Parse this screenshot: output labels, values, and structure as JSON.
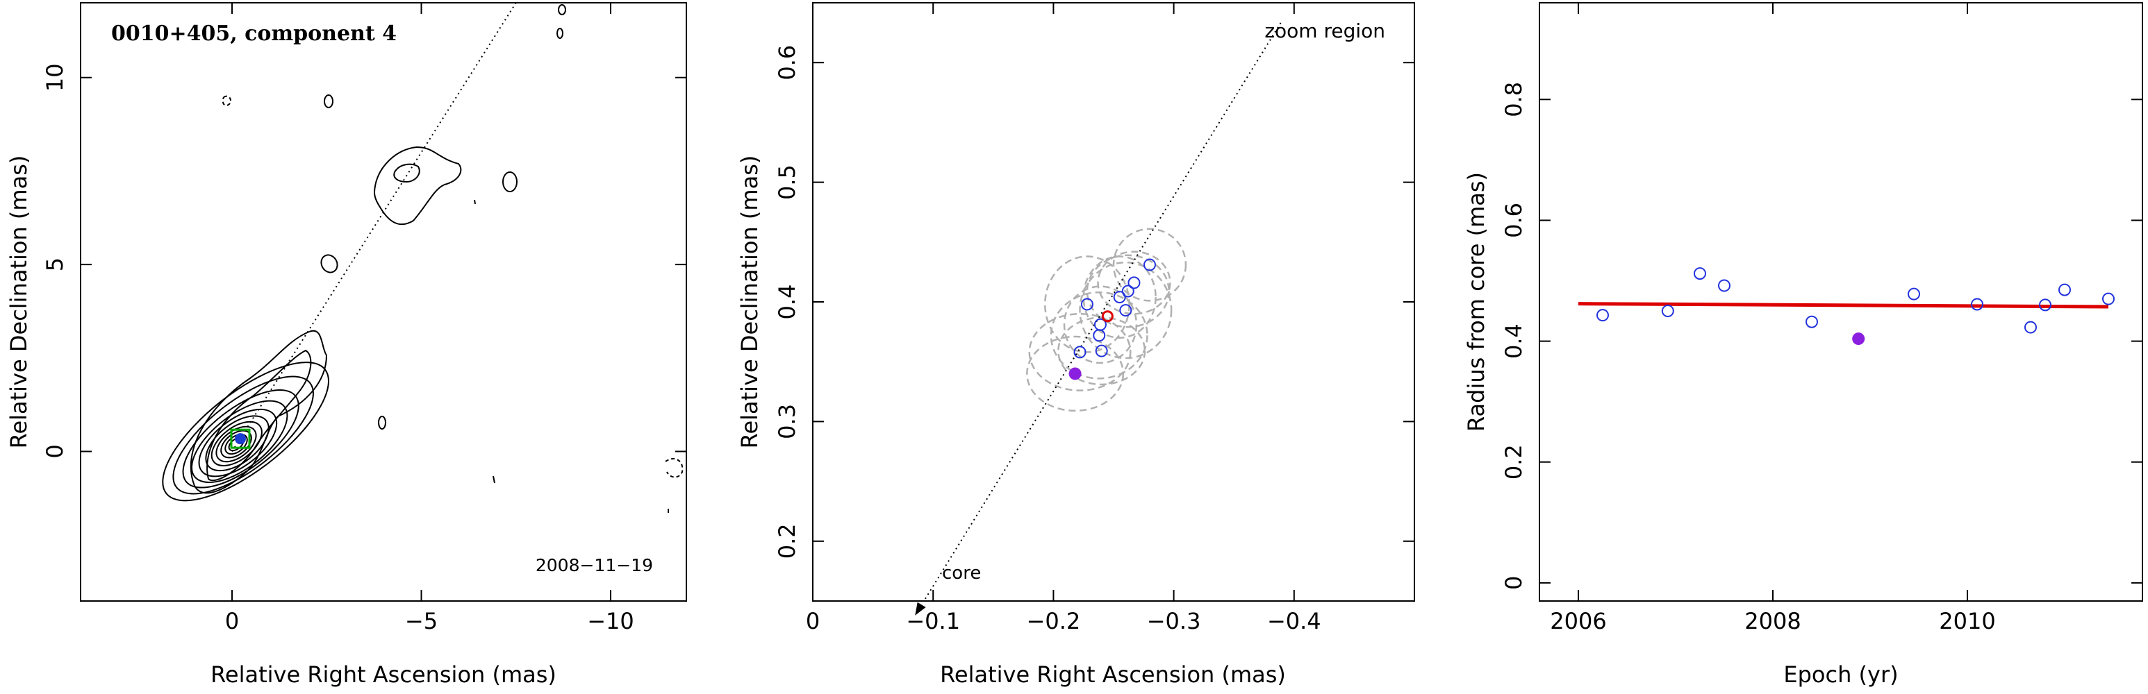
{
  "chart_data": [
    {
      "type": "contour",
      "title": "0010+405, component 4",
      "xlabel": "Relative Right Ascension (mas)",
      "ylabel": "Relative Declination (mas)",
      "xlim": [
        4,
        -12
      ],
      "ylim": [
        -4,
        12
      ],
      "xticks": [
        0,
        -5,
        -10
      ],
      "xtick_labels": [
        "0",
        "−5",
        "−10"
      ],
      "yticks": [
        0,
        5,
        10
      ],
      "ytick_labels": [
        "0",
        "5",
        "10"
      ],
      "date_label": "2008−11−19",
      "jet_axis": {
        "from": [
          0,
          0
        ],
        "to": [
          -7.5,
          12
        ]
      },
      "component": {
        "ra": -0.22,
        "dec": 0.34
      },
      "colors": {
        "contour": "#000000",
        "component": "#1a3fd0",
        "box": "#00aa00"
      }
    },
    {
      "type": "scatter",
      "xlabel": "Relative Right Ascension (mas)",
      "ylabel": "Relative Declination (mas)",
      "xlim": [
        0,
        -0.5
      ],
      "ylim": [
        0.15,
        0.65
      ],
      "xticks": [
        0,
        -0.1,
        -0.2,
        -0.3,
        -0.4
      ],
      "xtick_labels": [
        "0",
        "−0.1",
        "−0.2",
        "−0.3",
        "−0.4"
      ],
      "yticks": [
        0.2,
        0.3,
        0.4,
        0.5,
        0.6
      ],
      "ytick_labels": [
        "0.2",
        "0.3",
        "0.4",
        "0.5",
        "0.6"
      ],
      "annotations": {
        "zoom": "zoom region",
        "core": "core"
      },
      "points": [
        {
          "x": -0.222,
          "y": 0.358
        },
        {
          "x": -0.228,
          "y": 0.398
        },
        {
          "x": -0.238,
          "y": 0.372
        },
        {
          "x": -0.239,
          "y": 0.381
        },
        {
          "x": -0.24,
          "y": 0.359
        },
        {
          "x": -0.255,
          "y": 0.404
        },
        {
          "x": -0.26,
          "y": 0.393
        },
        {
          "x": -0.262,
          "y": 0.409
        },
        {
          "x": -0.267,
          "y": 0.416
        },
        {
          "x": -0.28,
          "y": 0.431
        }
      ],
      "highlight": {
        "x": -0.218,
        "y": 0.34
      },
      "fit_point": {
        "x": -0.245,
        "y": 0.388
      },
      "ellipses": [
        {
          "x": -0.222,
          "y": 0.358,
          "rx": 0.042,
          "ry": 0.032
        },
        {
          "x": -0.228,
          "y": 0.398,
          "rx": 0.035,
          "ry": 0.04
        },
        {
          "x": -0.238,
          "y": 0.372,
          "rx": 0.04,
          "ry": 0.036
        },
        {
          "x": -0.239,
          "y": 0.381,
          "rx": 0.03,
          "ry": 0.032
        },
        {
          "x": -0.24,
          "y": 0.359,
          "rx": 0.036,
          "ry": 0.028
        },
        {
          "x": -0.255,
          "y": 0.404,
          "rx": 0.03,
          "ry": 0.034
        },
        {
          "x": -0.26,
          "y": 0.393,
          "rx": 0.038,
          "ry": 0.04
        },
        {
          "x": -0.262,
          "y": 0.409,
          "rx": 0.034,
          "ry": 0.03
        },
        {
          "x": -0.267,
          "y": 0.416,
          "rx": 0.03,
          "ry": 0.026
        },
        {
          "x": -0.28,
          "y": 0.431,
          "rx": 0.03,
          "ry": 0.03
        },
        {
          "x": -0.218,
          "y": 0.34,
          "rx": 0.04,
          "ry": 0.031
        }
      ],
      "jet_axis": {
        "from": [
          -0.085,
          0.138
        ],
        "to": [
          -0.39,
          0.635
        ]
      },
      "colors": {
        "points": "#2233dd",
        "highlight": "#8b1fe0",
        "fit": "#dd0000",
        "ellipse": "#b0b0b0"
      }
    },
    {
      "type": "scatter",
      "xlabel": "Epoch (yr)",
      "ylabel": "Radius from core (mas)",
      "xlim": [
        2005.6,
        2011.8
      ],
      "ylim": [
        -0.03,
        0.96
      ],
      "xticks": [
        2006,
        2008,
        2010
      ],
      "xtick_labels": [
        "2006",
        "2008",
        "2010"
      ],
      "yticks": [
        0,
        0.2,
        0.4,
        0.6,
        0.8
      ],
      "ytick_labels": [
        "0",
        "0.2",
        "0.4",
        "0.6",
        "0.8"
      ],
      "points": [
        {
          "x": 2006.25,
          "y": 0.443
        },
        {
          "x": 2006.92,
          "y": 0.45
        },
        {
          "x": 2007.25,
          "y": 0.512
        },
        {
          "x": 2007.5,
          "y": 0.492
        },
        {
          "x": 2008.4,
          "y": 0.432
        },
        {
          "x": 2009.45,
          "y": 0.478
        },
        {
          "x": 2010.1,
          "y": 0.461
        },
        {
          "x": 2010.65,
          "y": 0.423
        },
        {
          "x": 2010.8,
          "y": 0.46
        },
        {
          "x": 2011.0,
          "y": 0.485
        },
        {
          "x": 2011.45,
          "y": 0.47
        }
      ],
      "highlight": {
        "x": 2008.88,
        "y": 0.404
      },
      "fit_line": {
        "x": [
          2006.0,
          2011.45
        ],
        "y": [
          0.462,
          0.457
        ]
      },
      "colors": {
        "points": "#2233dd",
        "highlight": "#8b1fe0",
        "fit": "#dd0000"
      }
    }
  ]
}
